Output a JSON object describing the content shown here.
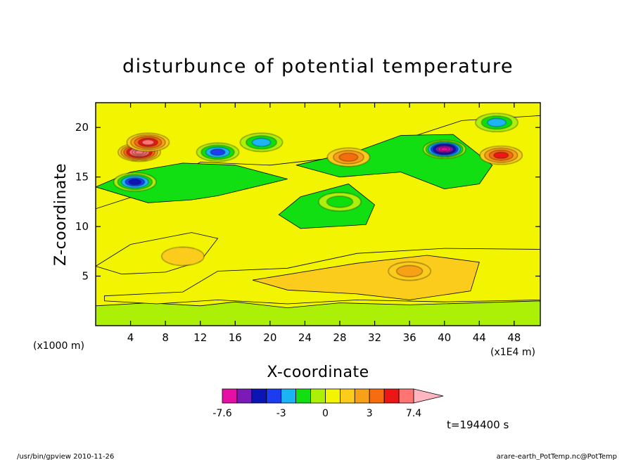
{
  "chart_data": {
    "type": "heatmap",
    "title": "disturbunce of potential temperature",
    "xlabel": "X-coordinate",
    "ylabel": "Z-coordinate",
    "x_unit": "(x1E4 m)",
    "y_unit": "(x1000 m)",
    "xlim": [
      0,
      51
    ],
    "ylim": [
      0,
      22.5
    ],
    "x_ticks": [
      4,
      8,
      12,
      16,
      20,
      24,
      28,
      32,
      36,
      40,
      44,
      48
    ],
    "y_ticks": [
      5,
      10,
      15,
      20
    ],
    "time_label": "t=194400 s",
    "colorbar": {
      "min_label": "-7.6",
      "max_label": "7.4",
      "labels": [
        {
          "value": -7.6,
          "text": "-7.6"
        },
        {
          "value": -3,
          "text": "-3"
        },
        {
          "value": 0,
          "text": "0"
        },
        {
          "value": 3,
          "text": "3"
        },
        {
          "value": 7.4,
          "text": "7.4"
        }
      ],
      "levels": [
        -7.6,
        -6,
        -5,
        -4,
        -3,
        -2,
        -1,
        0,
        1,
        2,
        3,
        4,
        5,
        7.4
      ],
      "colors": [
        "#e60ea5",
        "#7a1bb8",
        "#0b15b4",
        "#1c3cf0",
        "#1ab4f4",
        "#11df11",
        "#acf008",
        "#f2f400",
        "#fbcc1c",
        "#f8a016",
        "#f66d0f",
        "#ee1515",
        "#ff7573",
        "#ffb6c1"
      ]
    },
    "features": [
      {
        "x": 5,
        "y": 17.5,
        "value": 7.4
      },
      {
        "x": 4.5,
        "y": 14.5,
        "value": -4.5
      },
      {
        "x": 6,
        "y": 18.5,
        "value": 5
      },
      {
        "x": 14,
        "y": 17.5,
        "value": -4
      },
      {
        "x": 19,
        "y": 18.5,
        "value": -3
      },
      {
        "x": 29,
        "y": 17,
        "value": 3
      },
      {
        "x": 40,
        "y": 17.8,
        "value": -7.6
      },
      {
        "x": 46.5,
        "y": 17.2,
        "value": 4
      },
      {
        "x": 46,
        "y": 20.5,
        "value": -3
      },
      {
        "x": 28,
        "y": 12.5,
        "value": -1.5
      },
      {
        "x": 36,
        "y": 5.5,
        "value": 1.5
      },
      {
        "x": 10,
        "y": 7,
        "value": 0.5
      }
    ]
  },
  "footer": {
    "left": "/usr/bin/gpview   2010-11-26",
    "right": "arare-earth_PotTemp.nc@PotTemp"
  }
}
